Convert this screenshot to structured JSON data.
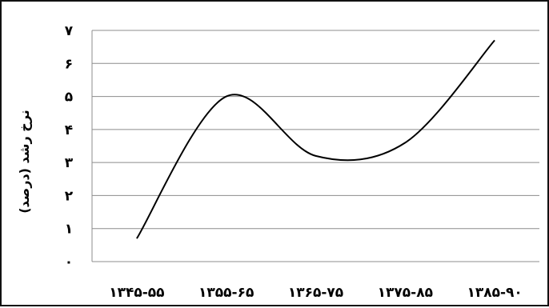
{
  "chart_data": {
    "type": "line",
    "title": "",
    "xlabel": "",
    "ylabel": "نرخ رشد (درصد)",
    "categories": [
      "۱۳۴۵-۵۵",
      "۱۳۵۵-۶۵",
      "۱۳۶۵-۷۵",
      "۱۳۷۵-۸۵",
      "۱۳۸۵-۹۰"
    ],
    "y_ticks": [
      "۰",
      "۱",
      "۲",
      "۳",
      "۴",
      "۵",
      "۶",
      "۷"
    ],
    "ylim": [
      0,
      7
    ],
    "grid": true,
    "legend": "none",
    "smooth": true,
    "series": [
      {
        "values": [
          0.7,
          5.0,
          3.2,
          3.6,
          6.7
        ],
        "color": "#000000"
      }
    ]
  }
}
